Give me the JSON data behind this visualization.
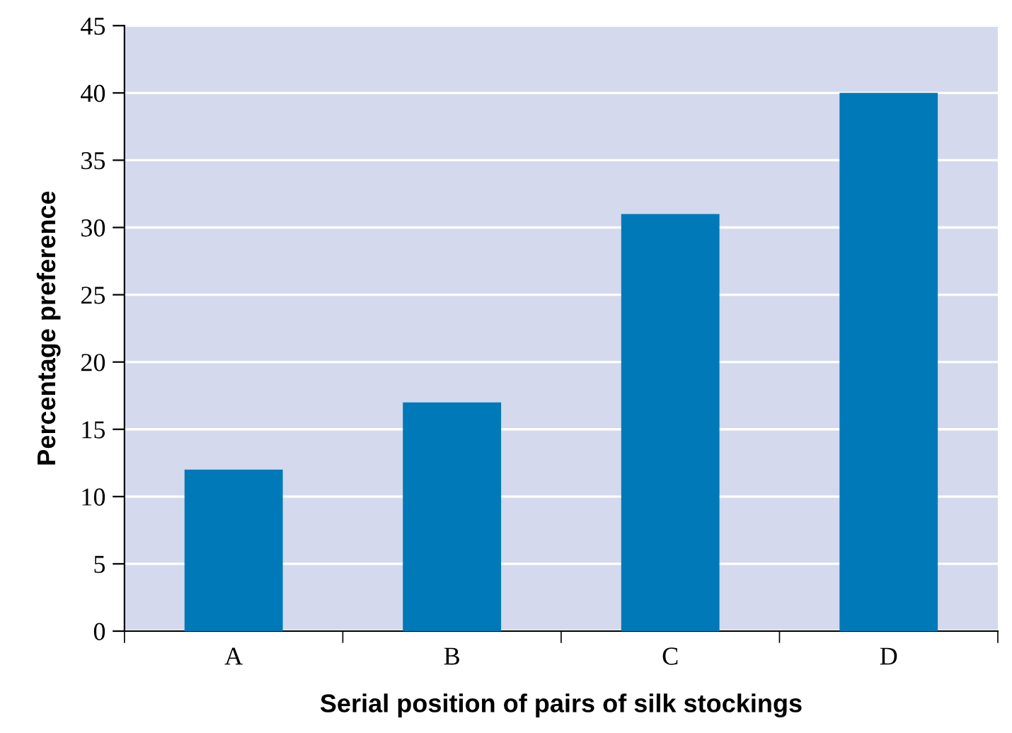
{
  "chart_data": {
    "type": "bar",
    "xlabel": "Serial position of pairs of silk stockings",
    "ylabel": "Percentage preference",
    "categories": [
      "A",
      "B",
      "C",
      "D"
    ],
    "values": [
      12,
      17,
      31,
      40
    ],
    "color": "#0079b8",
    "ylim": [
      0,
      45
    ],
    "yticks": [
      0,
      5,
      10,
      15,
      20,
      25,
      30,
      35,
      40,
      45
    ],
    "grid": "y"
  }
}
